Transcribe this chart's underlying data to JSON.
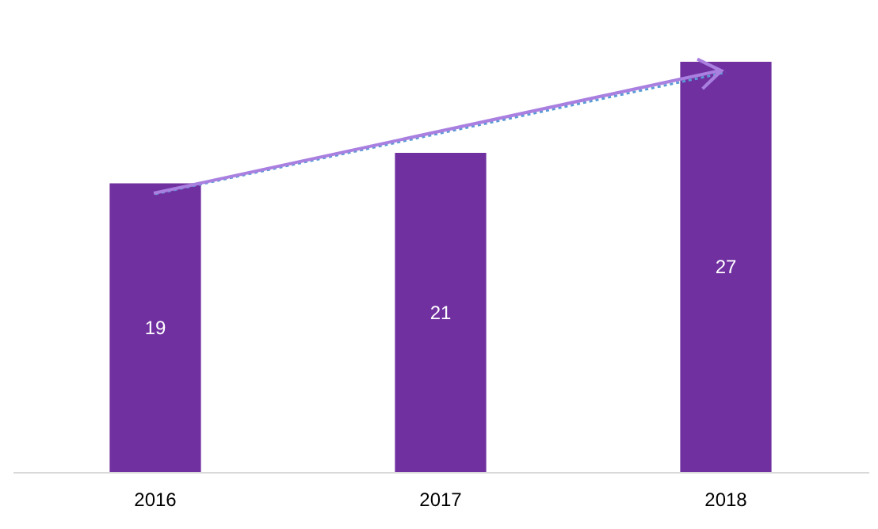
{
  "chart_data": {
    "type": "bar",
    "categories": [
      "2016",
      "2017",
      "2018"
    ],
    "series": [
      {
        "color": "#7030a0",
        "values": [
          19,
          21,
          27
        ],
        "value_labels": [
          "19",
          "21",
          "27"
        ]
      },
      {
        "type": "line",
        "color": "#5b9bd5",
        "line_style": "dotted",
        "values": [
          18.3,
          22.3,
          26.3
        ]
      }
    ]
  }
}
